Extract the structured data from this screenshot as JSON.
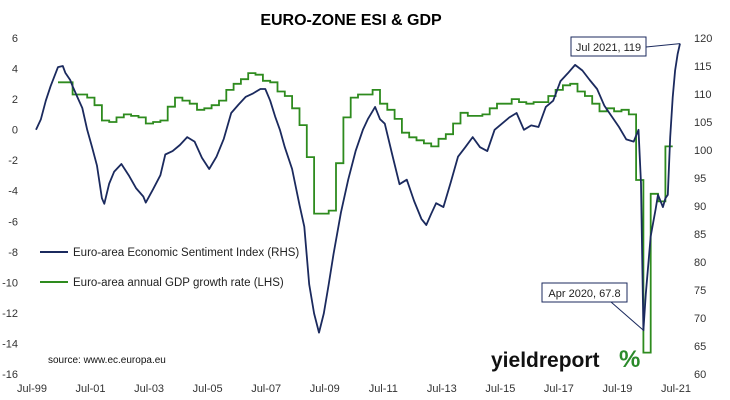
{
  "chart_data": {
    "type": "line",
    "title": "EURO-ZONE ESI & GDP",
    "source": "source: www.ec.europa.eu",
    "logo": {
      "text": "yieldreport",
      "symbol": "%"
    },
    "x_ticks": [
      "Jul-99",
      "Jul-01",
      "Jul-03",
      "Jul-05",
      "Jul-07",
      "Jul-09",
      "Jul-11",
      "Jul-13",
      "Jul-15",
      "Jul-17",
      "Jul-19",
      "Jul-21"
    ],
    "xlim": [
      "1999-07",
      "2021-07"
    ],
    "left_axis": {
      "ticks": [
        "6",
        "4",
        "2",
        "0",
        "-2",
        "-4",
        "-6",
        "-8",
        "-10",
        "-12",
        "-14",
        "-16"
      ],
      "range": [
        -16,
        6
      ]
    },
    "right_axis": {
      "ticks": [
        "120",
        "115",
        "110",
        "105",
        "100",
        "95",
        "90",
        "85",
        "80",
        "75",
        "70",
        "65",
        "60"
      ],
      "range": [
        60,
        120
      ]
    },
    "grid": false,
    "legend_position": "center-left",
    "colors": {
      "esi": "#1b2a5e",
      "gdp": "#2e8b1e"
    },
    "series": [
      {
        "name": "Euro-area Economic Sentiment Index (RHS)",
        "axis": "right",
        "points": [
          [
            "1999-07",
            103.6
          ],
          [
            "1999-09",
            105.5
          ],
          [
            "1999-11",
            108.8
          ],
          [
            "2000-01",
            111.4
          ],
          [
            "2000-04",
            114.8
          ],
          [
            "2000-06",
            115.0
          ],
          [
            "2000-07",
            113.8
          ],
          [
            "2000-09",
            112.5
          ],
          [
            "2000-10",
            111.4
          ],
          [
            "2000-12",
            109.4
          ],
          [
            "2001-02",
            107.5
          ],
          [
            "2001-04",
            103.6
          ],
          [
            "2001-06",
            100.5
          ],
          [
            "2001-08",
            97.2
          ],
          [
            "2001-10",
            91.4
          ],
          [
            "2001-11",
            90.4
          ],
          [
            "2002-01",
            94.0
          ],
          [
            "2002-03",
            96.1
          ],
          [
            "2002-06",
            97.5
          ],
          [
            "2002-09",
            95.5
          ],
          [
            "2002-12",
            93.2
          ],
          [
            "2003-03",
            91.7
          ],
          [
            "2003-04",
            90.6
          ],
          [
            "2003-07",
            93.0
          ],
          [
            "2003-10",
            95.5
          ],
          [
            "2003-12",
            99.2
          ],
          [
            "2004-03",
            99.8
          ],
          [
            "2004-06",
            100.9
          ],
          [
            "2004-09",
            102.3
          ],
          [
            "2004-12",
            101.5
          ],
          [
            "2005-03",
            98.6
          ],
          [
            "2005-06",
            96.6
          ],
          [
            "2005-09",
            98.8
          ],
          [
            "2005-12",
            102.0
          ],
          [
            "2006-03",
            106.6
          ],
          [
            "2006-06",
            108.1
          ],
          [
            "2006-09",
            109.5
          ],
          [
            "2006-12",
            110.1
          ],
          [
            "2007-03",
            110.9
          ],
          [
            "2007-05",
            110.9
          ],
          [
            "2007-07",
            108.8
          ],
          [
            "2007-09",
            106.0
          ],
          [
            "2007-11",
            103.6
          ],
          [
            "2008-01",
            100.5
          ],
          [
            "2008-04",
            96.6
          ],
          [
            "2008-07",
            90.2
          ],
          [
            "2008-09",
            86.3
          ],
          [
            "2008-11",
            76.0
          ],
          [
            "2009-01",
            70.8
          ],
          [
            "2009-03",
            67.4
          ],
          [
            "2009-05",
            70.8
          ],
          [
            "2009-07",
            76.0
          ],
          [
            "2009-09",
            81.5
          ],
          [
            "2009-12",
            88.8
          ],
          [
            "2010-03",
            94.7
          ],
          [
            "2010-06",
            99.8
          ],
          [
            "2010-09",
            103.6
          ],
          [
            "2010-11",
            105.5
          ],
          [
            "2011-02",
            107.7
          ],
          [
            "2011-04",
            105.5
          ],
          [
            "2011-06",
            104.7
          ],
          [
            "2011-09",
            99.2
          ],
          [
            "2011-12",
            93.9
          ],
          [
            "2012-03",
            94.7
          ],
          [
            "2012-06",
            90.9
          ],
          [
            "2012-09",
            87.7
          ],
          [
            "2012-11",
            86.6
          ],
          [
            "2013-01",
            88.6
          ],
          [
            "2013-03",
            90.5
          ],
          [
            "2013-06",
            89.8
          ],
          [
            "2013-09",
            94.2
          ],
          [
            "2013-12",
            98.8
          ],
          [
            "2014-03",
            100.5
          ],
          [
            "2014-06",
            102.3
          ],
          [
            "2014-09",
            100.5
          ],
          [
            "2014-12",
            99.8
          ],
          [
            "2015-03",
            103.6
          ],
          [
            "2015-06",
            104.7
          ],
          [
            "2015-09",
            105.8
          ],
          [
            "2015-12",
            106.6
          ],
          [
            "2016-03",
            103.6
          ],
          [
            "2016-06",
            104.4
          ],
          [
            "2016-09",
            104.1
          ],
          [
            "2016-12",
            107.7
          ],
          [
            "2017-03",
            108.8
          ],
          [
            "2017-06",
            112.3
          ],
          [
            "2017-09",
            113.7
          ],
          [
            "2017-12",
            115.2
          ],
          [
            "2018-03",
            114.2
          ],
          [
            "2018-06",
            112.5
          ],
          [
            "2018-09",
            110.9
          ],
          [
            "2018-12",
            107.9
          ],
          [
            "2019-03",
            106.0
          ],
          [
            "2019-06",
            104.1
          ],
          [
            "2019-09",
            101.9
          ],
          [
            "2019-12",
            101.5
          ],
          [
            "2020-02",
            103.6
          ],
          [
            "2020-03",
            94.0
          ],
          [
            "2020-04",
            67.8
          ],
          [
            "2020-05",
            74.3
          ],
          [
            "2020-07",
            84.6
          ],
          [
            "2020-09",
            89.4
          ],
          [
            "2020-10",
            92.0
          ],
          [
            "2020-12",
            89.8
          ],
          [
            "2021-01",
            91.4
          ],
          [
            "2021-02",
            92.0
          ],
          [
            "2021-03",
            102.3
          ],
          [
            "2021-04",
            109.4
          ],
          [
            "2021-05",
            114.2
          ],
          [
            "2021-06",
            117.1
          ],
          [
            "2021-07",
            119.0
          ]
        ]
      },
      {
        "name": "Euro-area annual GDP growth rate (LHS)",
        "axis": "left",
        "points": [
          [
            "2000-04",
            3.1
          ],
          [
            "2000-07",
            3.1
          ],
          [
            "2000-10",
            2.3
          ],
          [
            "2001-01",
            2.3
          ],
          [
            "2001-04",
            2.1
          ],
          [
            "2001-07",
            1.6
          ],
          [
            "2001-10",
            0.6
          ],
          [
            "2002-01",
            0.5
          ],
          [
            "2002-04",
            0.8
          ],
          [
            "2002-07",
            1.0
          ],
          [
            "2002-10",
            0.9
          ],
          [
            "2003-01",
            0.8
          ],
          [
            "2003-04",
            0.4
          ],
          [
            "2003-07",
            0.5
          ],
          [
            "2003-10",
            0.6
          ],
          [
            "2004-01",
            1.5
          ],
          [
            "2004-04",
            2.1
          ],
          [
            "2004-07",
            1.9
          ],
          [
            "2004-10",
            1.7
          ],
          [
            "2005-01",
            1.3
          ],
          [
            "2005-04",
            1.4
          ],
          [
            "2005-07",
            1.6
          ],
          [
            "2005-10",
            1.9
          ],
          [
            "2006-01",
            2.6
          ],
          [
            "2006-04",
            3.0
          ],
          [
            "2006-07",
            3.3
          ],
          [
            "2006-10",
            3.7
          ],
          [
            "2007-01",
            3.6
          ],
          [
            "2007-04",
            3.2
          ],
          [
            "2007-07",
            3.1
          ],
          [
            "2007-10",
            2.5
          ],
          [
            "2008-01",
            2.2
          ],
          [
            "2008-04",
            1.4
          ],
          [
            "2008-07",
            0.3
          ],
          [
            "2008-10",
            -1.8
          ],
          [
            "2009-01",
            -5.5
          ],
          [
            "2009-04",
            -5.5
          ],
          [
            "2009-07",
            -5.3
          ],
          [
            "2009-10",
            -2.2
          ],
          [
            "2010-01",
            0.8
          ],
          [
            "2010-04",
            2.1
          ],
          [
            "2010-07",
            2.3
          ],
          [
            "2010-10",
            2.3
          ],
          [
            "2011-01",
            2.6
          ],
          [
            "2011-04",
            1.7
          ],
          [
            "2011-07",
            1.3
          ],
          [
            "2011-10",
            0.7
          ],
          [
            "2012-01",
            -0.2
          ],
          [
            "2012-04",
            -0.5
          ],
          [
            "2012-07",
            -0.7
          ],
          [
            "2012-10",
            -0.9
          ],
          [
            "2013-01",
            -1.1
          ],
          [
            "2013-04",
            -0.6
          ],
          [
            "2013-07",
            -0.3
          ],
          [
            "2013-10",
            0.4
          ],
          [
            "2014-01",
            1.1
          ],
          [
            "2014-04",
            0.9
          ],
          [
            "2014-07",
            0.9
          ],
          [
            "2014-10",
            1.0
          ],
          [
            "2015-01",
            1.4
          ],
          [
            "2015-04",
            1.7
          ],
          [
            "2015-07",
            1.7
          ],
          [
            "2015-10",
            2.0
          ],
          [
            "2016-01",
            1.8
          ],
          [
            "2016-04",
            1.7
          ],
          [
            "2016-07",
            1.8
          ],
          [
            "2016-10",
            1.8
          ],
          [
            "2017-01",
            2.2
          ],
          [
            "2017-04",
            2.6
          ],
          [
            "2017-07",
            2.9
          ],
          [
            "2017-10",
            3.0
          ],
          [
            "2018-01",
            2.5
          ],
          [
            "2018-04",
            2.2
          ],
          [
            "2018-07",
            1.7
          ],
          [
            "2018-10",
            1.2
          ],
          [
            "2019-01",
            1.4
          ],
          [
            "2019-04",
            1.2
          ],
          [
            "2019-07",
            1.3
          ],
          [
            "2019-10",
            1.0
          ],
          [
            "2020-01",
            -3.3
          ],
          [
            "2020-04",
            -14.6
          ],
          [
            "2020-07",
            -4.2
          ],
          [
            "2020-10",
            -4.7
          ],
          [
            "2021-01",
            -1.1
          ],
          [
            "2021-04",
            -1.1
          ]
        ]
      }
    ],
    "annotations": [
      {
        "text": "Jul 2021, 119",
        "x": "2021-07",
        "y": 119.0,
        "axis": "right"
      },
      {
        "text": "Apr 2020, 67.8",
        "x": "2020-04",
        "y": 67.8,
        "axis": "right"
      }
    ]
  }
}
